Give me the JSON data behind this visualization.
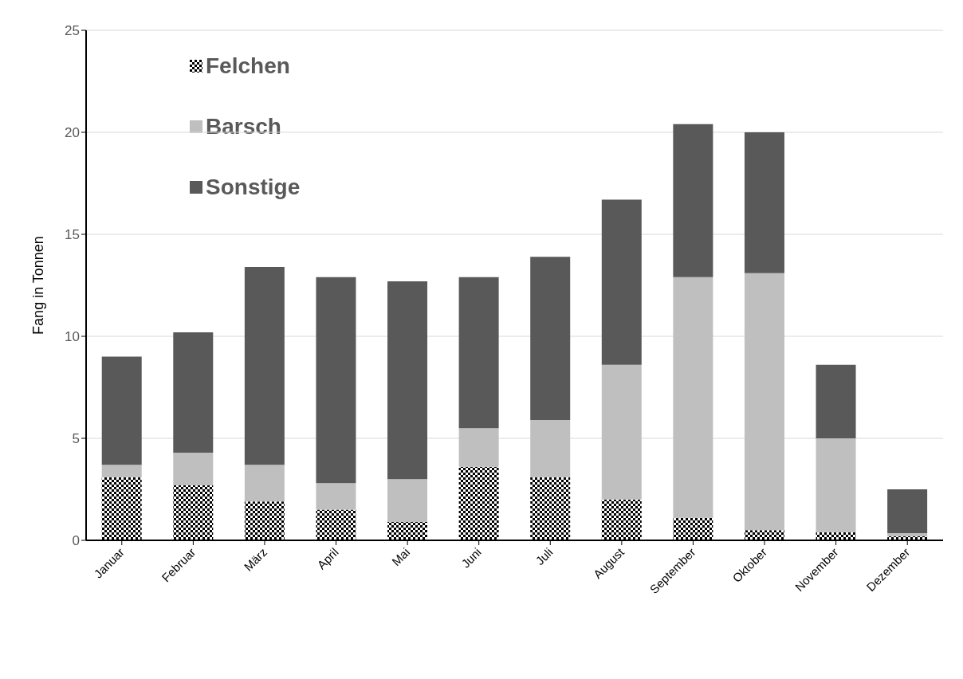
{
  "chart_data": {
    "type": "bar",
    "stacked": true,
    "ylabel": "Fang in Tonnen",
    "categories": [
      "Januar",
      "Februar",
      "März",
      "April",
      "Mai",
      "Juni",
      "Juli",
      "August",
      "September",
      "Oktober",
      "November",
      "Dezember"
    ],
    "series": [
      {
        "name": "Felchen",
        "color": "#000000",
        "values": [
          3.1,
          2.7,
          1.9,
          1.5,
          0.9,
          3.6,
          3.1,
          2.0,
          1.1,
          0.5,
          0.4,
          0.2
        ]
      },
      {
        "name": "Barsch",
        "color": "#bfbfbf",
        "values": [
          0.6,
          1.6,
          1.8,
          1.3,
          2.1,
          1.9,
          2.8,
          6.6,
          11.8,
          12.6,
          4.6,
          0.15
        ]
      },
      {
        "name": "Sonstige",
        "color": "#595959",
        "values": [
          5.3,
          5.9,
          9.7,
          10.1,
          9.7,
          7.4,
          8.0,
          8.1,
          7.5,
          6.9,
          3.6,
          2.15
        ]
      }
    ],
    "ylim": [
      0,
      25
    ],
    "yticks": [
      0,
      5,
      10,
      15,
      20,
      25
    ],
    "grid": "y",
    "legend": "top left"
  }
}
